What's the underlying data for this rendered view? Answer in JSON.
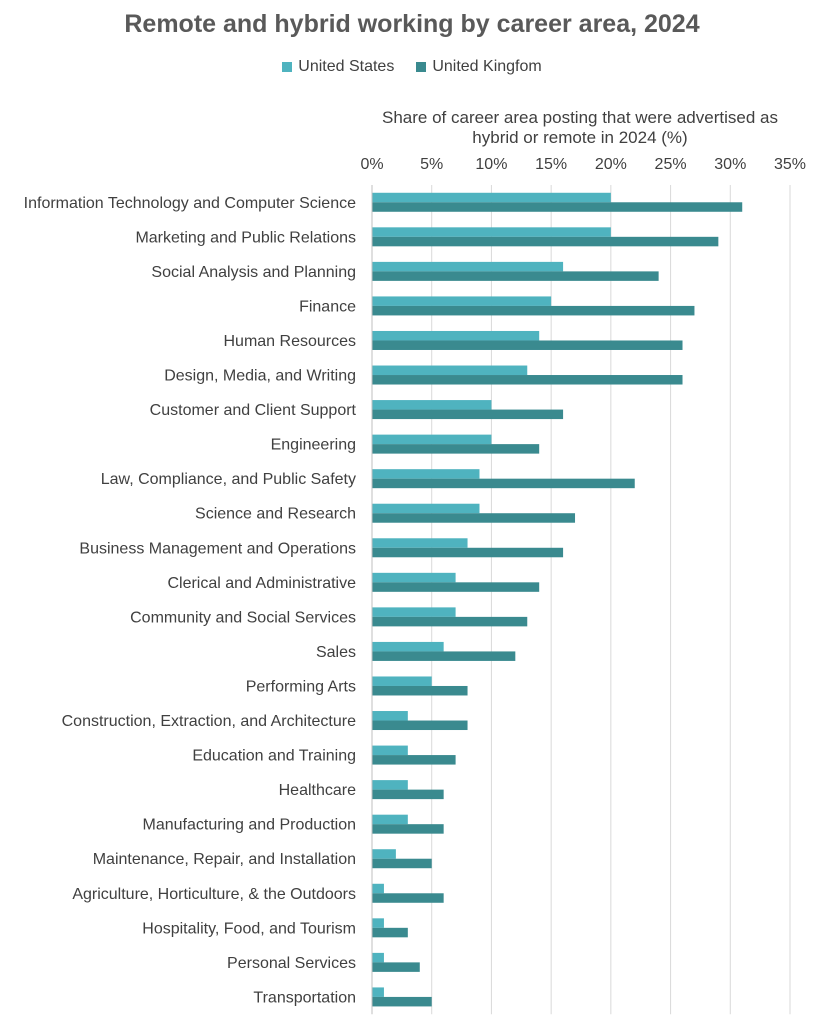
{
  "chart_data": {
    "type": "bar",
    "orientation": "horizontal",
    "title": "Remote and hybrid working by career area, 2024",
    "xlabel": "Share of career area posting that were advertised as hybrid or remote in 2024 (%)",
    "ylabel": "",
    "xlim": [
      0,
      35
    ],
    "x_ticks": [
      "0%",
      "5%",
      "10%",
      "15%",
      "20%",
      "25%",
      "30%",
      "35%"
    ],
    "x_tick_values": [
      0,
      5,
      10,
      15,
      20,
      25,
      30,
      35
    ],
    "grid": "vertical",
    "legend_position": "top",
    "categories": [
      "Information Technology and Computer Science",
      "Marketing and Public Relations",
      "Social Analysis and Planning",
      "Finance",
      "Human Resources",
      "Design, Media, and Writing",
      "Customer and Client Support",
      "Engineering",
      "Law, Compliance, and Public Safety",
      "Science and Research",
      "Business Management and Operations",
      "Clerical and Administrative",
      "Community and Social Services",
      "Sales",
      "Performing Arts",
      "Construction, Extraction, and Architecture",
      "Education and Training",
      "Healthcare",
      "Manufacturing and Production",
      "Maintenance, Repair, and Installation",
      "Agriculture, Horticulture, & the Outdoors",
      "Hospitality, Food, and Tourism",
      "Personal Services",
      "Transportation"
    ],
    "series": [
      {
        "name": "United States",
        "color": "#4fb3bf",
        "values": [
          20,
          20,
          16,
          15,
          14,
          13,
          10,
          10,
          9,
          9,
          8,
          7,
          7,
          6,
          5,
          3,
          3,
          3,
          3,
          2,
          1,
          1,
          1,
          1
        ]
      },
      {
        "name": "United Kingfom",
        "color": "#3a8a8f",
        "values": [
          31,
          29,
          24,
          27,
          26,
          26,
          16,
          14,
          22,
          17,
          16,
          14,
          13,
          12,
          8,
          8,
          7,
          6,
          6,
          5,
          6,
          3,
          4,
          5
        ]
      }
    ]
  }
}
